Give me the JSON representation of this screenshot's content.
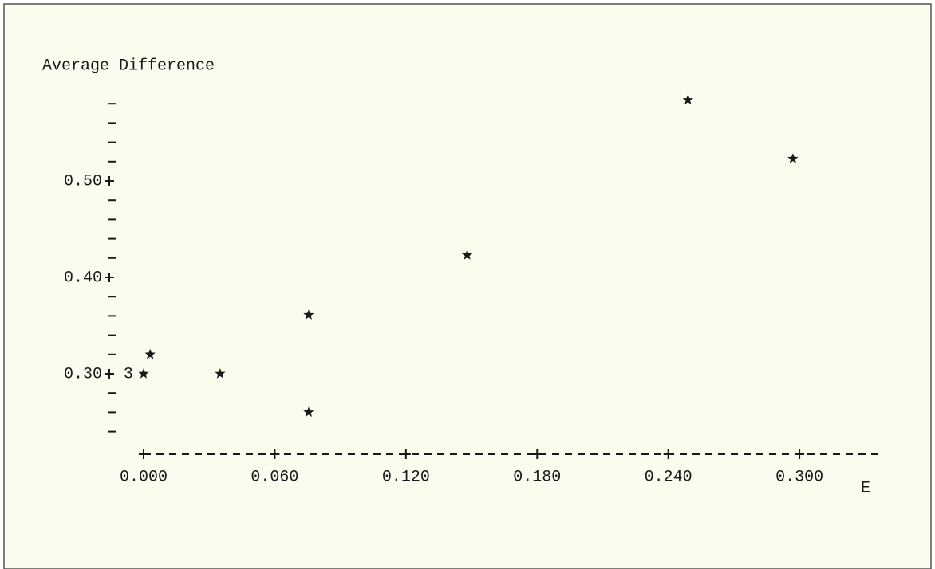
{
  "chart_data": {
    "type": "scatter",
    "title": "Average Difference",
    "x_label": "E",
    "xlim": [
      -0.02,
      0.34
    ],
    "ylim": [
      0.2,
      0.6
    ],
    "xticks": [
      {
        "value": 0,
        "label": "0.000"
      },
      {
        "value": 0.06,
        "label": "0.060"
      },
      {
        "value": 0.12,
        "label": "0.120"
      },
      {
        "value": 0.18,
        "label": "0.180"
      },
      {
        "value": 0.24,
        "label": "0.240"
      },
      {
        "value": 0.3,
        "label": "0.300"
      }
    ],
    "yticks": [
      {
        "value": 0.3,
        "label": "0.30"
      },
      {
        "value": 0.4,
        "label": "0.40"
      },
      {
        "value": 0.5,
        "label": "0.50"
      }
    ],
    "yminorticks": [
      0.24,
      0.26,
      0.28,
      0.32,
      0.34,
      0.36,
      0.38,
      0.42,
      0.44,
      0.46,
      0.48,
      0.52,
      0.54,
      0.56,
      0.58
    ],
    "series": [
      {
        "x": [
          0.249,
          0.297,
          0.148,
          0.0755,
          0.003,
          -0.007,
          0.0,
          0.035,
          0.0755
        ],
        "values": [
          0.584,
          0.523,
          0.423,
          0.361,
          0.32,
          0.3,
          0.3,
          0.3,
          0.26
        ],
        "counts": [
          1,
          1,
          1,
          1,
          1,
          3,
          1,
          1,
          1
        ]
      }
    ]
  }
}
